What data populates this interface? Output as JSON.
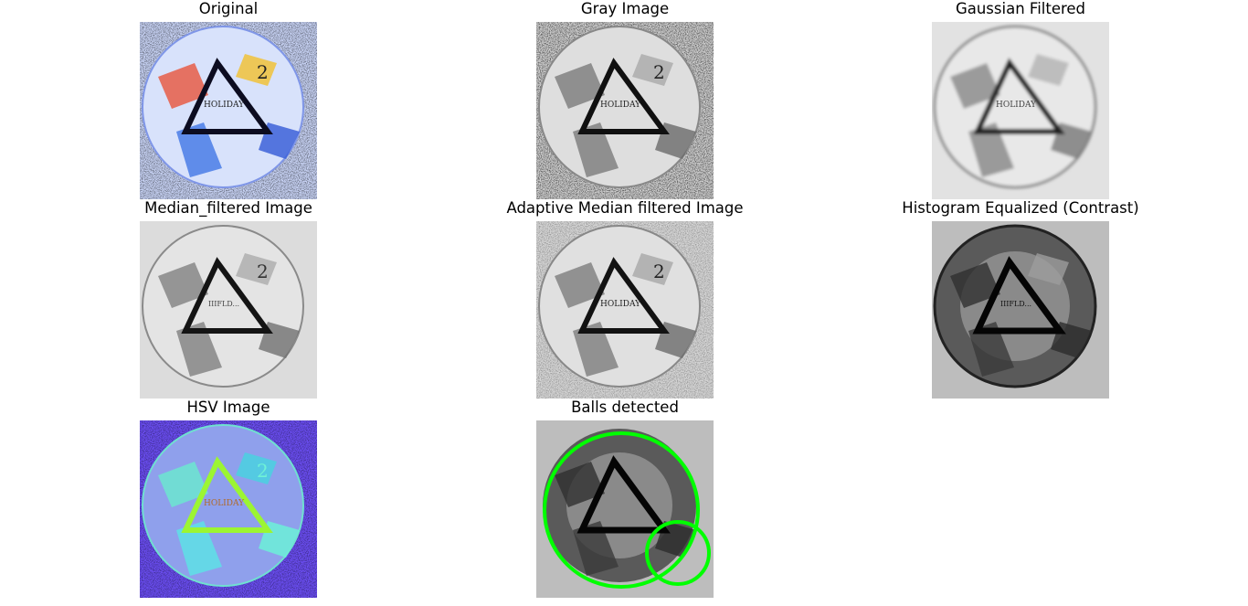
{
  "figure": {
    "panels": [
      {
        "id": "original",
        "title": "Original",
        "icon": "soccer-ball-image"
      },
      {
        "id": "gray",
        "title": "Gray Image",
        "icon": "soccer-ball-image"
      },
      {
        "id": "gaussian",
        "title": "Gaussian Filtered",
        "icon": "soccer-ball-image"
      },
      {
        "id": "median",
        "title": "Median_filtered Image",
        "icon": "soccer-ball-image"
      },
      {
        "id": "adaptive",
        "title": "Adaptive Median filtered Image",
        "icon": "soccer-ball-image"
      },
      {
        "id": "histeq",
        "title": "Histogram Equalized (Contrast)",
        "icon": "soccer-ball-image"
      },
      {
        "id": "hsv",
        "title": "HSV Image",
        "icon": "soccer-ball-image"
      },
      {
        "id": "detected",
        "title": "Balls detected",
        "icon": "soccer-ball-image"
      }
    ],
    "ball_text": "HOLIDAY",
    "detection_color": "#00ff00"
  }
}
